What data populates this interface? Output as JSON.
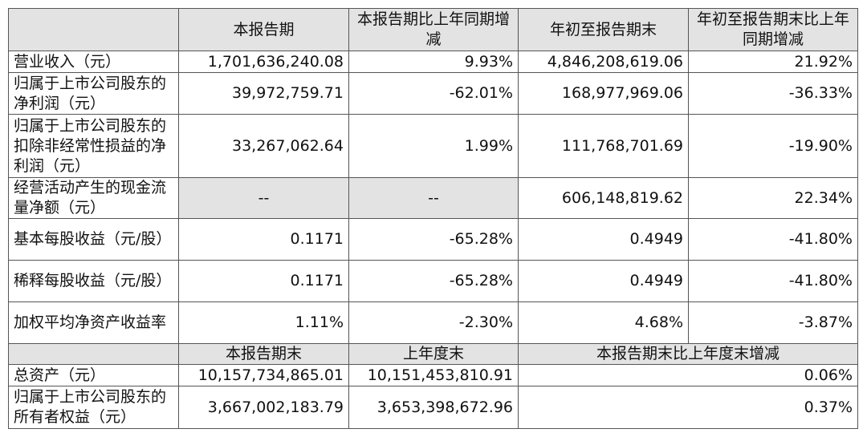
{
  "table": {
    "header": [
      "本报告期",
      "本报告期比上年同期增减",
      "年初至报告期末",
      "年初至报告期末比上年同期增减"
    ],
    "rows": [
      [
        "营业收入（元）",
        "1,701,636,240.08",
        "9.93%",
        "4,846,208,619.06",
        "21.92%"
      ],
      [
        "归属于上市公司股东的净利润（元）",
        "39,972,759.71",
        "-62.01%",
        "168,977,969.06",
        "-36.33%"
      ],
      [
        "归属于上市公司股东的扣除非经常性损益的净利润（元）",
        "33,267,062.64",
        "1.99%",
        "111,768,701.69",
        "-19.90%"
      ],
      [
        "经营活动产生的现金流量净额（元）",
        "--",
        "--",
        "606,148,819.62",
        "22.34%"
      ],
      [
        "基本每股收益（元/股）",
        "0.1171",
        "-65.28%",
        "0.4949",
        "-41.80%"
      ],
      [
        "稀释每股收益（元/股）",
        "0.1171",
        "-65.28%",
        "0.4949",
        "-41.80%"
      ],
      [
        "加权平均净资产收益率",
        "1.11%",
        "-2.30%",
        "4.68%",
        "-3.87%"
      ]
    ],
    "subheader": [
      "本报告期末",
      "上年度末",
      "本报告期末比上年度末增减"
    ],
    "rows2": [
      [
        "总资产（元）",
        "10,157,734,865.01",
        "10,151,453,810.91",
        "0.06%"
      ],
      [
        "归属于上市公司股东的所有者权益（元）",
        "3,667,002,183.79",
        "3,653,398,672.96",
        "0.37%"
      ]
    ]
  }
}
